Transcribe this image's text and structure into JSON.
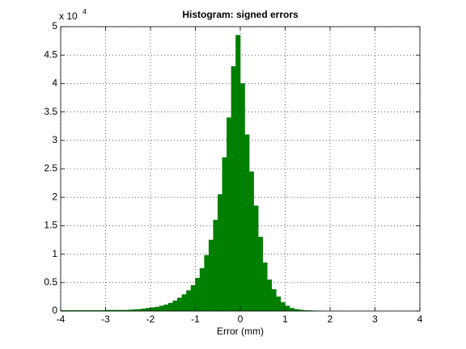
{
  "chart_data": {
    "type": "histogram",
    "title": "Histogram: signed errors",
    "xlabel": "Error (mm)",
    "yscale_text": "x 10",
    "yscale_exponent": "4",
    "bins": [
      -4,
      -3.9,
      -3.8,
      -3.7,
      -3.6,
      -3.5,
      -3.4,
      -3.3,
      -3.2,
      -3.1,
      -3,
      -2.9,
      -2.8,
      -2.7,
      -2.6,
      -2.5,
      -2.4,
      -2.3,
      -2.2,
      -2.1,
      -2,
      -1.9,
      -1.8,
      -1.7,
      -1.6,
      -1.5,
      -1.4,
      -1.3,
      -1.2,
      -1.1,
      -1,
      -0.9,
      -0.8,
      -0.7,
      -0.6,
      -0.5,
      -0.4,
      -0.3,
      -0.2,
      -0.1,
      0,
      0.1,
      0.2,
      0.3,
      0.4,
      0.5,
      0.6,
      0.7,
      0.8,
      0.9,
      1,
      1.1,
      1.2,
      1.3,
      1.4,
      1.5,
      1.6,
      1.7,
      1.8
    ],
    "values": [
      0.01,
      0.01,
      0.01,
      0.01,
      0.01,
      0.01,
      0.01,
      0.01,
      0.01,
      0.01,
      0.015,
      0.015,
      0.015,
      0.015,
      0.015,
      0.02,
      0.025,
      0.03,
      0.04,
      0.05,
      0.06,
      0.07,
      0.09,
      0.11,
      0.14,
      0.18,
      0.23,
      0.29,
      0.36,
      0.45,
      0.58,
      0.75,
      0.98,
      1.25,
      1.6,
      2.05,
      2.7,
      3.4,
      4.3,
      4.85,
      4.0,
      3.1,
      2.45,
      1.85,
      1.3,
      0.85,
      0.55,
      0.38,
      0.25,
      0.15,
      0.09,
      0.05,
      0.03,
      0.02,
      0.012,
      0.008,
      0.005,
      0.003
    ],
    "color": "#007f00",
    "xlim": [
      -4,
      4
    ],
    "xticks": [
      -4,
      -3,
      -2,
      -1,
      0,
      1,
      2,
      3,
      4
    ],
    "ylim": [
      0,
      5
    ],
    "yticks": [
      0,
      0.5,
      1,
      1.5,
      2,
      2.5,
      3,
      3.5,
      4,
      4.5,
      5
    ],
    "grid": true
  }
}
